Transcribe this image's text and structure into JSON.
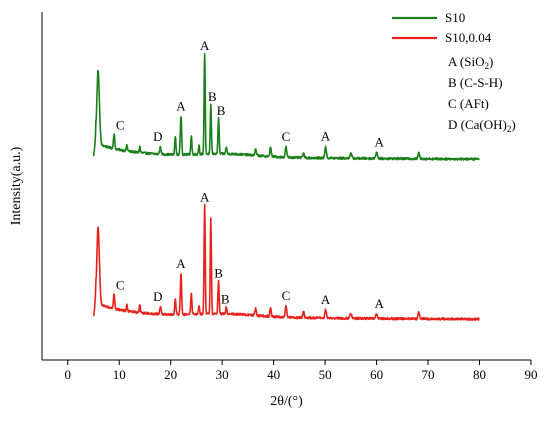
{
  "chart_data": {
    "type": "line",
    "xlabel": "2θ/(°)",
    "ylabel": "Intensity(a.u.)",
    "xlim": [
      -5,
      90
    ],
    "xticks": [
      0,
      10,
      20,
      30,
      40,
      50,
      60,
      70,
      80,
      90
    ],
    "y_tick_labels_shown": false,
    "legend_position": "top-right",
    "series": [
      {
        "name": "S10",
        "color": "#1a7f1a",
        "baseline_offset": 1.0,
        "peaks": [
          {
            "x": 5.9,
            "h": 0.62,
            "w": 0.35
          },
          {
            "x": 9.0,
            "h": 0.12,
            "w": 0.18
          },
          {
            "x": 11.5,
            "h": 0.05,
            "w": 0.15
          },
          {
            "x": 14.0,
            "h": 0.05,
            "w": 0.15
          },
          {
            "x": 18.0,
            "h": 0.06,
            "w": 0.2
          },
          {
            "x": 20.9,
            "h": 0.16,
            "w": 0.16
          },
          {
            "x": 22.0,
            "h": 0.33,
            "w": 0.18
          },
          {
            "x": 24.0,
            "h": 0.16,
            "w": 0.16
          },
          {
            "x": 25.5,
            "h": 0.08,
            "w": 0.15
          },
          {
            "x": 26.6,
            "h": 0.85,
            "w": 0.15
          },
          {
            "x": 27.8,
            "h": 0.42,
            "w": 0.15
          },
          {
            "x": 29.3,
            "h": 0.3,
            "w": 0.16
          },
          {
            "x": 30.8,
            "h": 0.06,
            "w": 0.15
          },
          {
            "x": 36.5,
            "h": 0.05,
            "w": 0.2
          },
          {
            "x": 39.4,
            "h": 0.08,
            "w": 0.18
          },
          {
            "x": 42.4,
            "h": 0.09,
            "w": 0.2
          },
          {
            "x": 45.8,
            "h": 0.04,
            "w": 0.2
          },
          {
            "x": 50.1,
            "h": 0.1,
            "w": 0.2
          },
          {
            "x": 55.0,
            "h": 0.04,
            "w": 0.25
          },
          {
            "x": 60.0,
            "h": 0.05,
            "w": 0.25
          },
          {
            "x": 68.2,
            "h": 0.05,
            "w": 0.2
          }
        ]
      },
      {
        "name": "S10,0.04",
        "color": "#e8211d",
        "baseline_offset": 0.0,
        "peaks": [
          {
            "x": 5.9,
            "h": 0.65,
            "w": 0.35
          },
          {
            "x": 9.0,
            "h": 0.12,
            "w": 0.18
          },
          {
            "x": 11.5,
            "h": 0.05,
            "w": 0.15
          },
          {
            "x": 14.0,
            "h": 0.07,
            "w": 0.15
          },
          {
            "x": 18.0,
            "h": 0.06,
            "w": 0.2
          },
          {
            "x": 20.9,
            "h": 0.14,
            "w": 0.16
          },
          {
            "x": 22.0,
            "h": 0.35,
            "w": 0.18
          },
          {
            "x": 24.0,
            "h": 0.18,
            "w": 0.16
          },
          {
            "x": 25.5,
            "h": 0.08,
            "w": 0.15
          },
          {
            "x": 26.6,
            "h": 0.92,
            "w": 0.15
          },
          {
            "x": 27.8,
            "h": 0.82,
            "w": 0.15
          },
          {
            "x": 29.3,
            "h": 0.28,
            "w": 0.16
          },
          {
            "x": 30.8,
            "h": 0.06,
            "w": 0.15
          },
          {
            "x": 36.5,
            "h": 0.06,
            "w": 0.2
          },
          {
            "x": 39.4,
            "h": 0.08,
            "w": 0.18
          },
          {
            "x": 42.4,
            "h": 0.1,
            "w": 0.2
          },
          {
            "x": 45.8,
            "h": 0.05,
            "w": 0.2
          },
          {
            "x": 50.1,
            "h": 0.07,
            "w": 0.2
          },
          {
            "x": 55.0,
            "h": 0.04,
            "w": 0.25
          },
          {
            "x": 60.0,
            "h": 0.04,
            "w": 0.25
          },
          {
            "x": 68.2,
            "h": 0.06,
            "w": 0.2
          }
        ]
      }
    ],
    "annotations": [
      {
        "series": "S10",
        "text": "A",
        "x": 26.6
      },
      {
        "series": "S10",
        "text": "B",
        "x": 28.1
      },
      {
        "series": "S10",
        "text": "B",
        "x": 29.8
      },
      {
        "series": "S10",
        "text": "A",
        "x": 22.0
      },
      {
        "series": "S10",
        "text": "C",
        "x": 10.2
      },
      {
        "series": "S10",
        "text": "D",
        "x": 17.5
      },
      {
        "series": "S10",
        "text": "C",
        "x": 42.4
      },
      {
        "series": "S10",
        "text": "A",
        "x": 50.1
      },
      {
        "series": "S10",
        "text": "A",
        "x": 60.5
      },
      {
        "series": "S10,0.04",
        "text": "A",
        "x": 26.6
      },
      {
        "series": "S10,0.04",
        "text": "B",
        "x": 29.3
      },
      {
        "series": "S10,0.04",
        "text": "B",
        "x": 30.6
      },
      {
        "series": "S10,0.04",
        "text": "A",
        "x": 22.0
      },
      {
        "series": "S10,0.04",
        "text": "C",
        "x": 10.2
      },
      {
        "series": "S10,0.04",
        "text": "D",
        "x": 17.5
      },
      {
        "series": "S10,0.04",
        "text": "C",
        "x": 42.4
      },
      {
        "series": "S10,0.04",
        "text": "A",
        "x": 50.1
      },
      {
        "series": "S10,0.04",
        "text": "A",
        "x": 60.5
      }
    ],
    "key": [
      {
        "letter": "A",
        "phase": "SiO",
        "sub": "2",
        "after": ""
      },
      {
        "letter": "B",
        "phase": "C-S-H",
        "sub": "",
        "after": ""
      },
      {
        "letter": "C",
        "phase": "AFt",
        "sub": "",
        "after": ""
      },
      {
        "letter": "D",
        "phase": "Ca(OH)",
        "sub": "2",
        "after": ""
      }
    ]
  }
}
